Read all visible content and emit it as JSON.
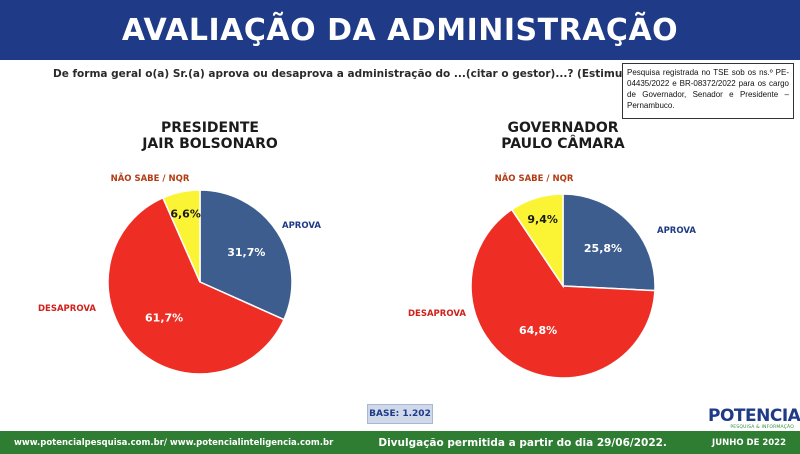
{
  "header": {
    "title": "AVALIAÇÃO DA ADMINISTRAÇÃO"
  },
  "question": "De forma geral o(a) Sr.(a) aprova ou desaprova a administração do ...(citar o gestor)...? (Estimulada)",
  "registry_note": "Pesquisa registrada no TSE sob os ns.º PE-04435/2022 e BR-08372/2022 para os cargo de Governador, Senador e Presidente – Pernambuco.",
  "base": "BASE: 1.202",
  "logo": {
    "name": "POTENCIAL",
    "tagline": "PESQUISA & INFORMAÇÃO"
  },
  "footer": {
    "websites": "www.potencialpesquisa.com.br/ www.potencialinteligencia.com.br",
    "disclosure": "Divulgação permitida a partir do dia 29/06/2022.",
    "date": "JUNHO DE 2022"
  },
  "colors": {
    "aprova": "#3d5d8f",
    "desaprova": "#ee2e24",
    "nao_sabe": "#fbf435",
    "header_bg": "#1f3a86",
    "footer_bg": "#2e7d32",
    "aprova_label": "#1f3a86",
    "desaprova_label": "#d0211b",
    "nao_sabe_label": "#b23c12"
  },
  "chart_data": [
    {
      "type": "pie",
      "title": "PRESIDENTE JAIR BOLSONARO",
      "title_lines": [
        "PRESIDENTE",
        "JAIR BOLSONARO"
      ],
      "categories": [
        "APROVA",
        "DESAPROVA",
        "NÃO SABE / NQR"
      ],
      "values": [
        31.7,
        61.7,
        6.6
      ],
      "value_labels": [
        "31,7%",
        "61,7%",
        "6,6%"
      ]
    },
    {
      "type": "pie",
      "title": "GOVERNADOR PAULO CÂMARA",
      "title_lines": [
        "GOVERNADOR",
        "PAULO CÂMARA"
      ],
      "categories": [
        "APROVA",
        "DESAPROVA",
        "NÃO SABE / NQR"
      ],
      "values": [
        25.8,
        64.8,
        9.4
      ],
      "value_labels": [
        "25,8%",
        "64,8%",
        "9,4%"
      ]
    }
  ]
}
